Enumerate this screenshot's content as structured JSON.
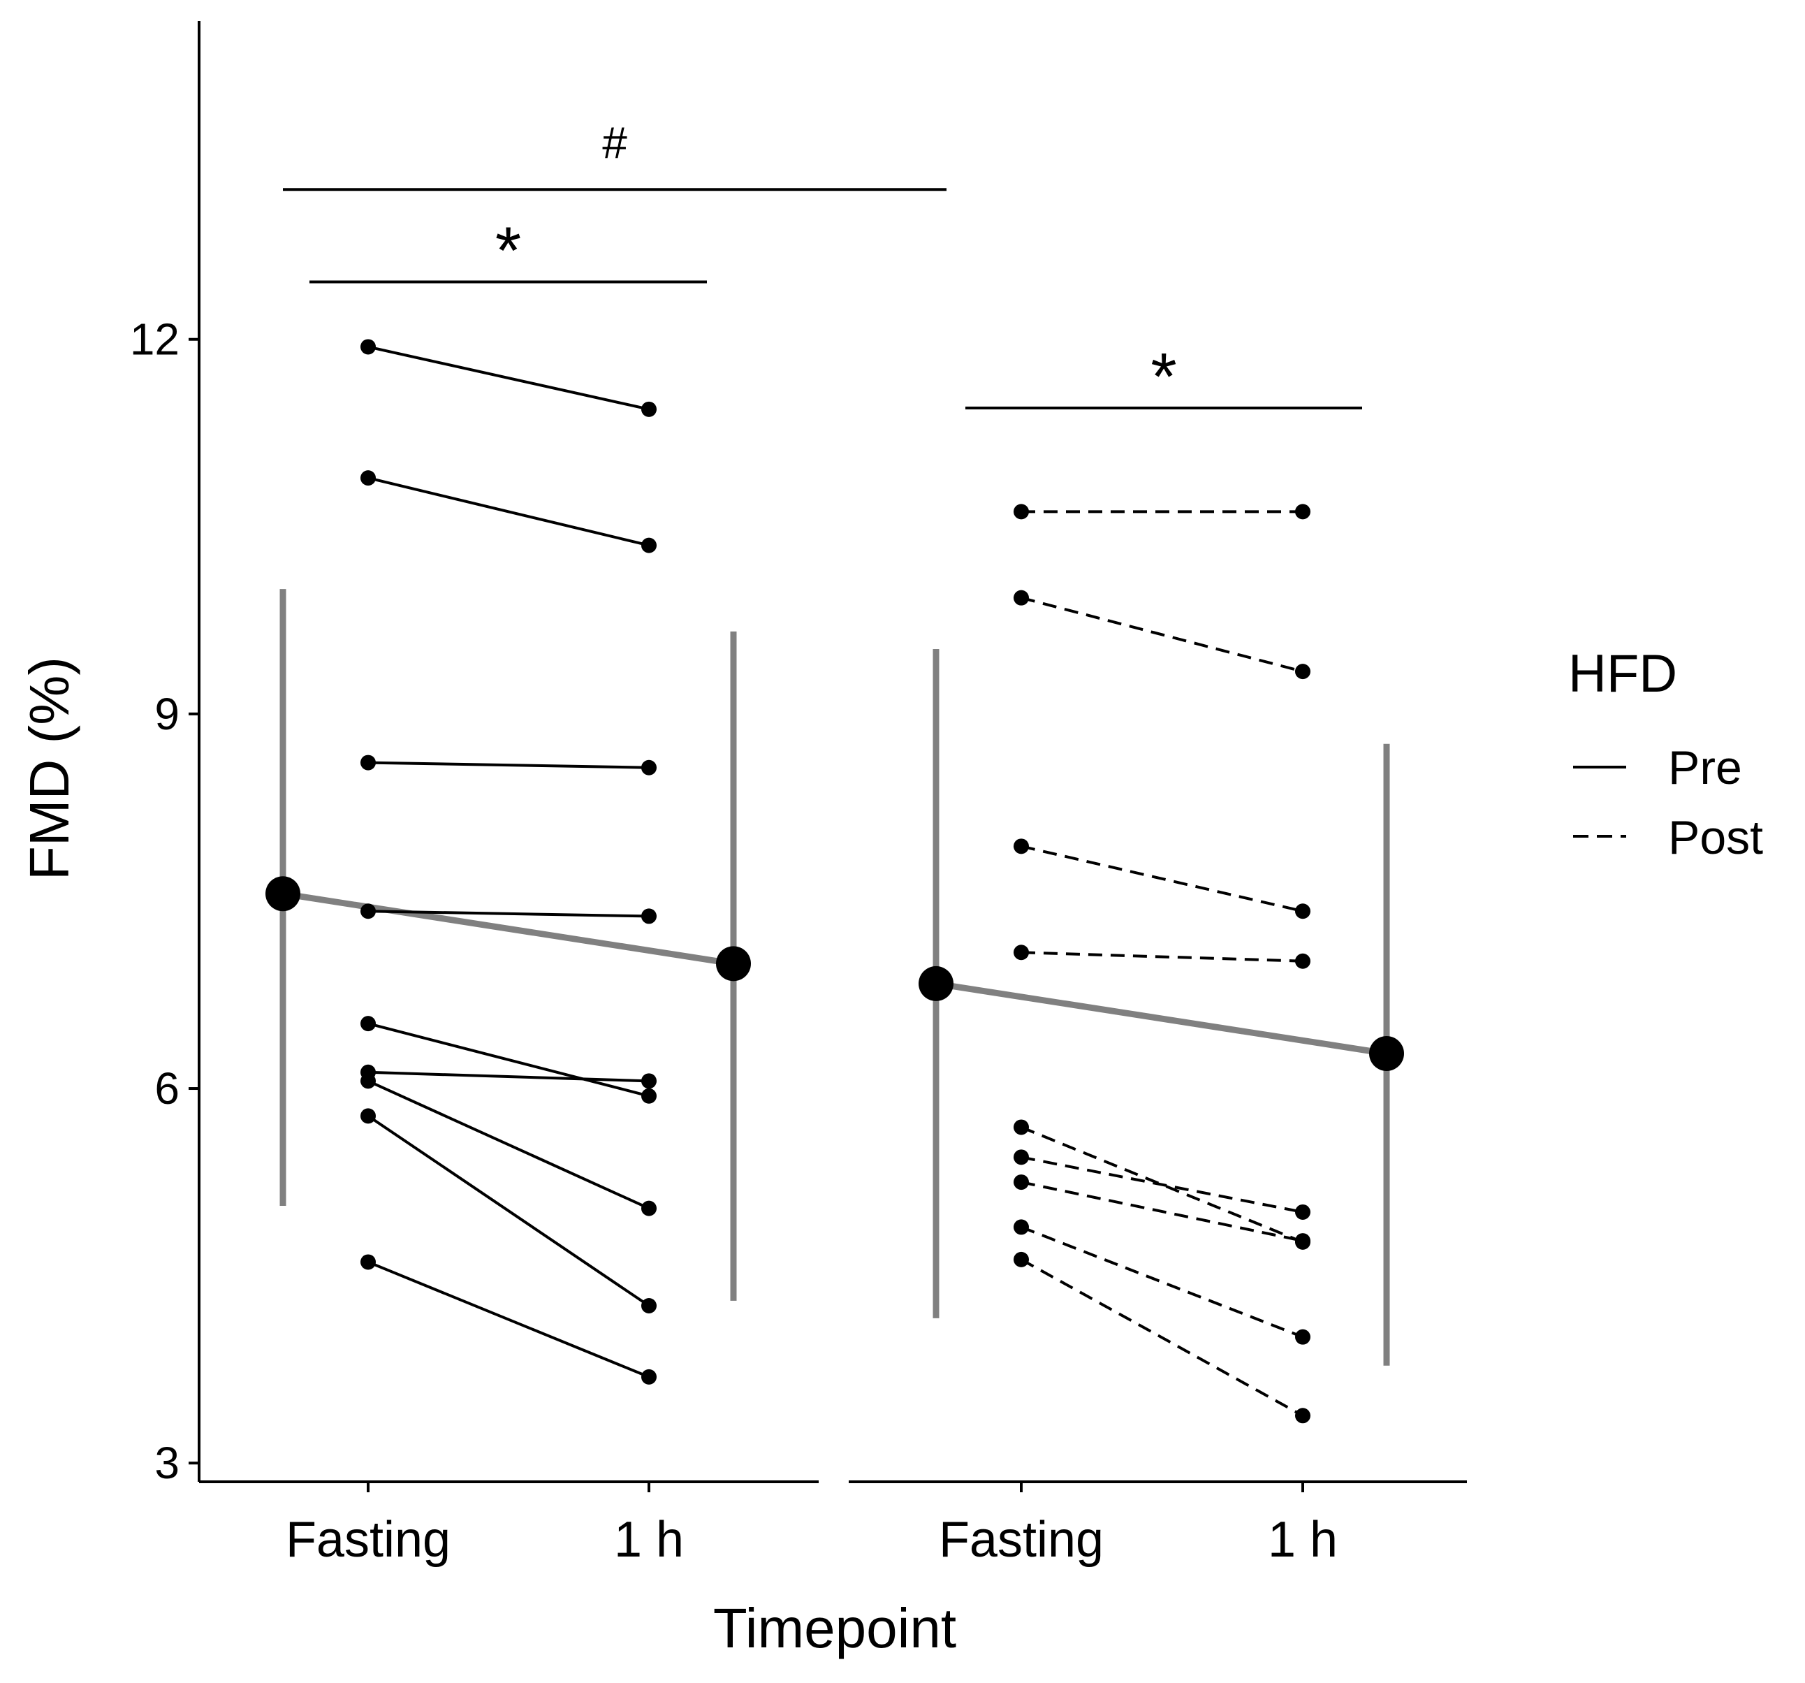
{
  "chart_data": {
    "type": "line",
    "xlabel": "Timepoint",
    "ylabel": "FMD (%)",
    "ylim": [
      2.85,
      14.55
    ],
    "y_ticks": [
      3,
      6,
      9,
      12
    ],
    "y_tick_labels": [
      "3",
      "6",
      "9",
      "12"
    ],
    "categories": [
      "Fasting",
      "1 h"
    ],
    "legend": {
      "title": "HFD",
      "placement": "right",
      "entries": [
        {
          "label": "Pre",
          "style": "solid"
        },
        {
          "label": "Post",
          "style": "dashed"
        }
      ]
    },
    "colors": {
      "individual": "#000000",
      "mean": "#000000",
      "sd_bar": "#808080",
      "mean_line": "#808080"
    },
    "panels": [
      {
        "name": "Pre",
        "x_labels": [
          "Fasting",
          "1 h"
        ],
        "line_style": "solid",
        "subjects": [
          {
            "fasting": 11.94,
            "one_h": 11.44
          },
          {
            "fasting": 10.89,
            "one_h": 10.35
          },
          {
            "fasting": 8.61,
            "one_h": 8.57
          },
          {
            "fasting": 7.42,
            "one_h": 7.38
          },
          {
            "fasting": 6.52,
            "one_h": 5.94
          },
          {
            "fasting": 6.13,
            "one_h": 6.06
          },
          {
            "fasting": 6.06,
            "one_h": 5.04
          },
          {
            "fasting": 5.78,
            "one_h": 4.26
          },
          {
            "fasting": 4.61,
            "one_h": 3.69
          }
        ],
        "mean": {
          "fasting": 7.56,
          "one_h": 7.0
        },
        "sd": {
          "fasting": [
            5.06,
            10.0
          ],
          "one_h": [
            4.3,
            9.66
          ]
        }
      },
      {
        "name": "Post",
        "x_labels": [
          "Fasting",
          "1 h"
        ],
        "line_style": "dashed",
        "subjects": [
          {
            "fasting": 10.62,
            "one_h": 10.62
          },
          {
            "fasting": 9.93,
            "one_h": 9.34
          },
          {
            "fasting": 7.94,
            "one_h": 7.42
          },
          {
            "fasting": 7.09,
            "one_h": 7.02
          },
          {
            "fasting": 5.69,
            "one_h": 4.77
          },
          {
            "fasting": 5.45,
            "one_h": 5.01
          },
          {
            "fasting": 5.25,
            "one_h": 4.78
          },
          {
            "fasting": 4.89,
            "one_h": 4.01
          },
          {
            "fasting": 4.63,
            "one_h": 3.38
          }
        ],
        "mean": {
          "fasting": 6.84,
          "one_h": 6.28
        },
        "sd": {
          "fasting": [
            4.16,
            9.52
          ],
          "one_h": [
            3.78,
            8.76
          ]
        }
      }
    ],
    "annotations": [
      {
        "label": "#",
        "y": 13.2,
        "span": "Pre mean fasting to Post mean fasting"
      },
      {
        "label": "*",
        "y": 12.46,
        "span": "Pre fasting to Pre 1 h"
      },
      {
        "label": "*",
        "y": 11.45,
        "span": "Post fasting to Post 1 h"
      }
    ]
  }
}
